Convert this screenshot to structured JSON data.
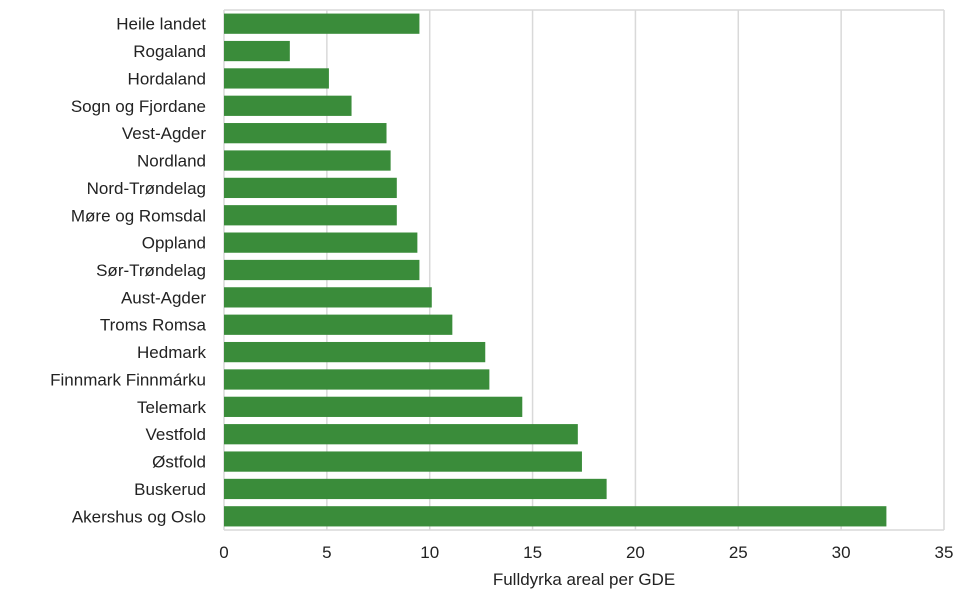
{
  "chart_data": {
    "type": "bar",
    "orientation": "horizontal",
    "categories": [
      "Heile landet",
      "Rogaland",
      "Hordaland",
      "Sogn og Fjordane",
      "Vest-Agder",
      "Nordland",
      "Nord-Trøndelag",
      "Møre og Romsdal",
      "Oppland",
      "Sør-Trøndelag",
      "Aust-Agder",
      "Troms Romsa",
      "Hedmark",
      "Finnmark Finnmárku",
      "Telemark",
      "Vestfold",
      "Østfold",
      "Buskerud",
      "Akershus og Oslo"
    ],
    "values": [
      9.5,
      3.2,
      5.1,
      6.2,
      7.9,
      8.1,
      8.4,
      8.4,
      9.4,
      9.5,
      10.1,
      11.1,
      12.7,
      12.9,
      14.5,
      17.2,
      17.4,
      18.6,
      32.2
    ],
    "xlabel": "Fulldyrka areal per GDE",
    "ylabel": "",
    "xlim": [
      0,
      35
    ],
    "xticks": [
      0,
      5,
      10,
      15,
      20,
      25,
      30,
      35
    ],
    "grid": true,
    "bar_color": "#3a8c3a"
  }
}
